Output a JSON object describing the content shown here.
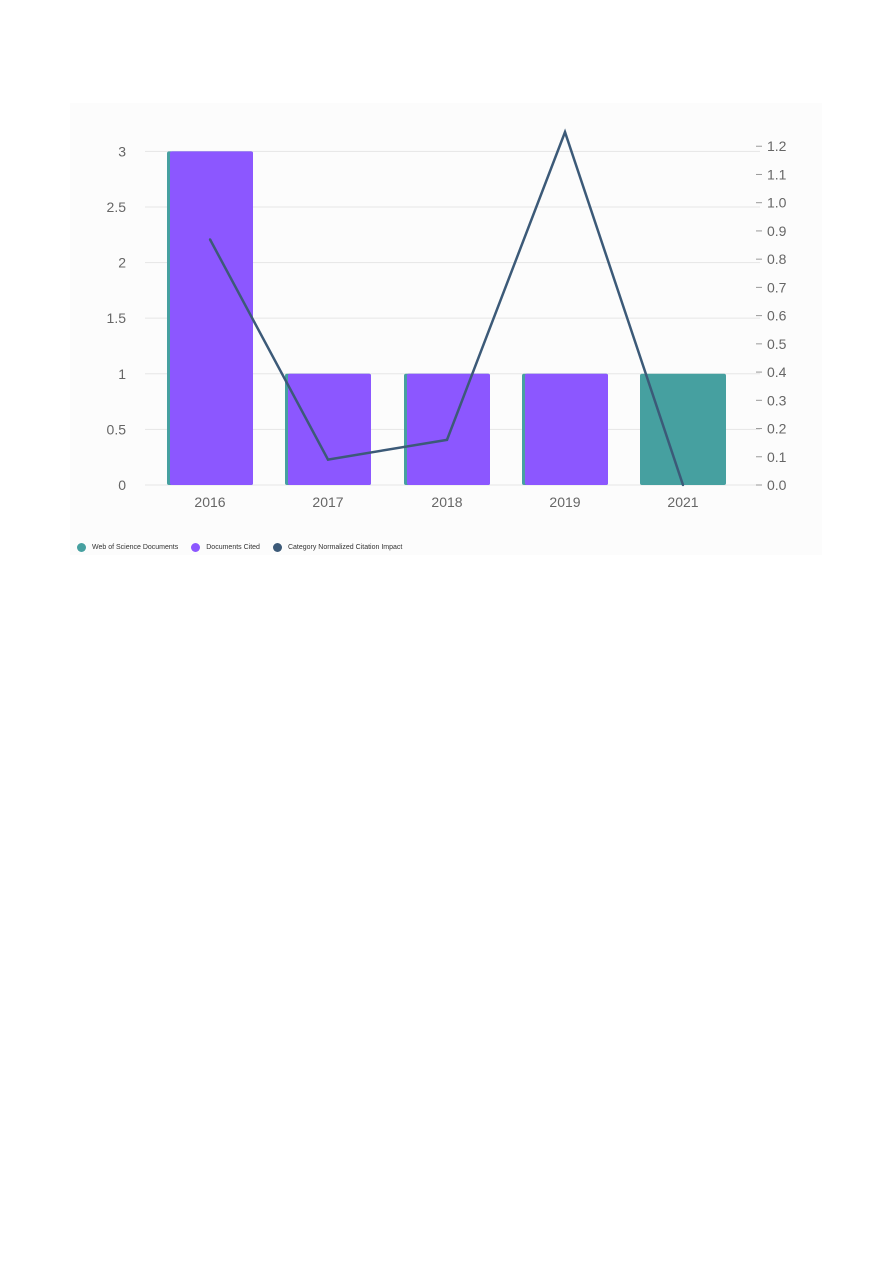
{
  "chart_data": {
    "type": "bar",
    "categories": [
      "2016",
      "2017",
      "2018",
      "2019",
      "2021"
    ],
    "series": [
      {
        "name": "Web of Science Documents",
        "type": "bar",
        "axis": "left",
        "color": "#46a0a0",
        "values": [
          3,
          1,
          1,
          1,
          1
        ]
      },
      {
        "name": "Documents Cited",
        "type": "bar",
        "axis": "left",
        "color": "#8c57ff",
        "values": [
          3,
          1,
          1,
          1,
          0
        ]
      },
      {
        "name": "Category Normalized Citation Impact",
        "type": "line",
        "axis": "right",
        "color": "#3c5a78",
        "values": [
          0.87,
          0.09,
          0.16,
          1.25,
          0.0
        ]
      }
    ],
    "y_left": {
      "ylim": [
        0,
        3.3
      ],
      "ticks": [
        "0",
        "0.5",
        "1",
        "1.5",
        "2",
        "2.5",
        "3"
      ],
      "tick_values": [
        0,
        0.5,
        1,
        1.5,
        2,
        2.5,
        3
      ]
    },
    "y_right": {
      "ylim": [
        0,
        1.3
      ],
      "ticks": [
        "0.0",
        "0.1",
        "0.2",
        "0.3",
        "0.4",
        "0.5",
        "0.6",
        "0.7",
        "0.8",
        "0.9",
        "1.0",
        "1.1",
        "1.2"
      ],
      "tick_values": [
        0,
        0.1,
        0.2,
        0.3,
        0.4,
        0.5,
        0.6,
        0.7,
        0.8,
        0.9,
        1.0,
        1.1,
        1.2
      ]
    },
    "grid": true,
    "legend_position": "bottom-left",
    "title": "",
    "xlabel": "",
    "ylabel": ""
  },
  "legend": {
    "items": [
      {
        "label": "Web of Science Documents",
        "color": "#46a0a0"
      },
      {
        "label": "Documents Cited",
        "color": "#8c57ff"
      },
      {
        "label": "Category Normalized Citation Impact",
        "color": "#3c5a78"
      }
    ]
  }
}
